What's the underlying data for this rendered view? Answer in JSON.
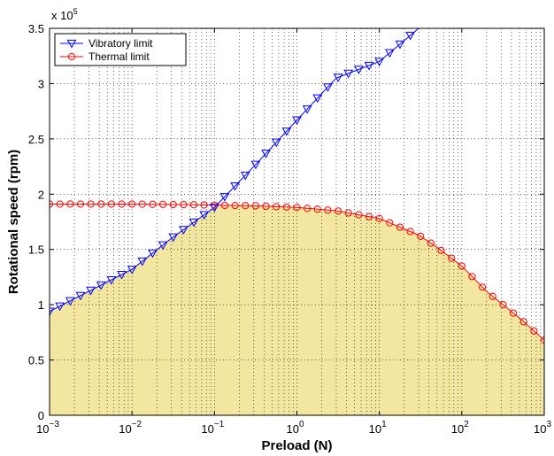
{
  "chart_data": {
    "type": "line",
    "xlabel": "Preload (N)",
    "ylabel": "Rotational speed (rpm)",
    "x_scale": "log",
    "xlim": [
      0.001,
      1000
    ],
    "ylim": [
      0,
      350000
    ],
    "y_multiplier_label": "x 10",
    "y_multiplier_exponent": "5",
    "x_ticks": [
      {
        "base": "10",
        "exp": "−3",
        "value": 0.001
      },
      {
        "base": "10",
        "exp": "−2",
        "value": 0.01
      },
      {
        "base": "10",
        "exp": "−1",
        "value": 0.1
      },
      {
        "base": "10",
        "exp": "0",
        "value": 1
      },
      {
        "base": "10",
        "exp": "1",
        "value": 10
      },
      {
        "base": "10",
        "exp": "2",
        "value": 100
      },
      {
        "base": "10",
        "exp": "3",
        "value": 1000
      }
    ],
    "y_ticks": [
      {
        "label": "0",
        "value": 0
      },
      {
        "label": "0.5",
        "value": 50000
      },
      {
        "label": "1",
        "value": 100000
      },
      {
        "label": "1.5",
        "value": 150000
      },
      {
        "label": "2",
        "value": 200000
      },
      {
        "label": "2.5",
        "value": 250000
      },
      {
        "label": "3",
        "value": 300000
      },
      {
        "label": "3.5",
        "value": 350000
      }
    ],
    "grid": true,
    "legend_position": "top-left",
    "shaded_region": {
      "description": "feasible operating region below both limits",
      "color": "#f2e6a0"
    },
    "series": [
      {
        "name": "Vibratory limit",
        "color": "#0000ff",
        "marker": "triangle-down",
        "x": [
          0.001,
          1000
        ],
        "y_points": [
          [
            0.001,
            94000
          ],
          [
            0.01,
            132000
          ],
          [
            0.03,
            160000
          ],
          [
            0.1,
            188000
          ],
          [
            0.3,
            225000
          ],
          [
            1,
            267000
          ],
          [
            3,
            305000
          ],
          [
            10,
            320000
          ],
          [
            30,
            350000
          ]
        ]
      },
      {
        "name": "Thermal limit",
        "color": "#ff0000",
        "marker": "circle",
        "y_points": [
          [
            0.001,
            191000
          ],
          [
            0.01,
            191000
          ],
          [
            0.05,
            190500
          ],
          [
            0.1,
            190000
          ],
          [
            0.3,
            189500
          ],
          [
            1,
            188000
          ],
          [
            3,
            185000
          ],
          [
            10,
            178000
          ],
          [
            30,
            163000
          ],
          [
            50,
            152000
          ],
          [
            100,
            135000
          ],
          [
            200,
            112000
          ],
          [
            500,
            88000
          ],
          [
            1000,
            68000
          ]
        ]
      }
    ]
  }
}
